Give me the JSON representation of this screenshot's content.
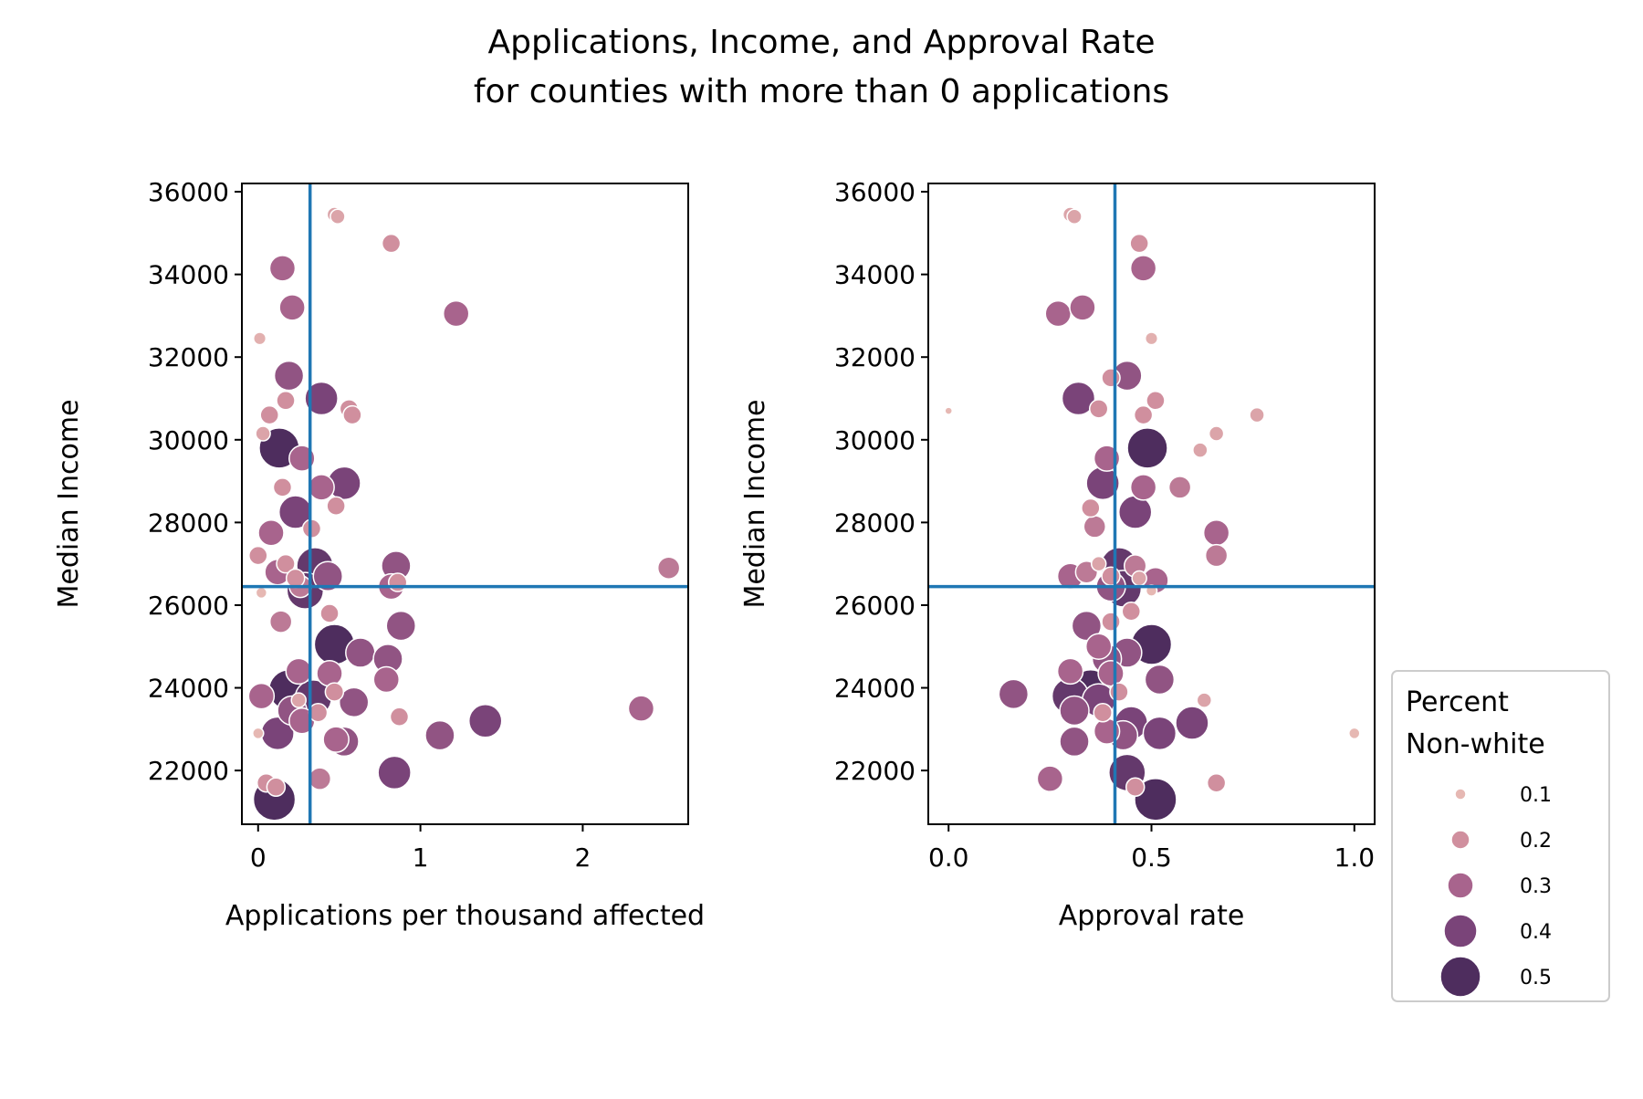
{
  "title_line1": "Applications, Income, and Approval Rate",
  "title_line2": "for counties with more than 0 applications",
  "legend": {
    "title_line1": "Percent",
    "title_line2": "Non-white",
    "levels": [
      0.1,
      0.2,
      0.3,
      0.4,
      0.5
    ],
    "labels": [
      "0.1",
      "0.2",
      "0.3",
      "0.4",
      "0.5"
    ],
    "colors": [
      "#e6b8b3",
      "#d08f9e",
      "#a8648d",
      "#7a4479",
      "#4e2d5e"
    ]
  },
  "reference_lines": {
    "apps_per_thousand": 0.32,
    "approval_rate": 0.41,
    "median_income": 26450,
    "color": "#1f77b4"
  },
  "chart_data": [
    {
      "type": "scatter",
      "xlabel": "Applications per thousand affected",
      "ylabel": "Median Income",
      "xlim": [
        -0.1,
        2.65
      ],
      "ylim": [
        20700,
        36200
      ],
      "xticks": [
        0,
        1,
        2
      ],
      "xtick_labels": [
        "0",
        "1",
        "2"
      ],
      "yticks": [
        22000,
        24000,
        26000,
        28000,
        30000,
        32000,
        34000,
        36000
      ],
      "ytick_labels": [
        "22000",
        "24000",
        "26000",
        "28000",
        "30000",
        "32000",
        "34000",
        "36000"
      ],
      "points": [
        {
          "x": 0.47,
          "y": 35450,
          "nw": 0.15
        },
        {
          "x": 0.49,
          "y": 35400,
          "nw": 0.15
        },
        {
          "x": 0.82,
          "y": 34750,
          "nw": 0.2
        },
        {
          "x": 0.15,
          "y": 34150,
          "nw": 0.3
        },
        {
          "x": 0.21,
          "y": 33200,
          "nw": 0.3
        },
        {
          "x": 1.22,
          "y": 33050,
          "nw": 0.3
        },
        {
          "x": 0.01,
          "y": 32450,
          "nw": 0.12
        },
        {
          "x": 0.19,
          "y": 31550,
          "nw": 0.35
        },
        {
          "x": 0.39,
          "y": 31000,
          "nw": 0.4
        },
        {
          "x": 0.17,
          "y": 30950,
          "nw": 0.2
        },
        {
          "x": 0.56,
          "y": 30750,
          "nw": 0.2
        },
        {
          "x": 0.07,
          "y": 30600,
          "nw": 0.2
        },
        {
          "x": 0.58,
          "y": 30600,
          "nw": 0.2
        },
        {
          "x": 0.03,
          "y": 30150,
          "nw": 0.15
        },
        {
          "x": 0.13,
          "y": 29800,
          "nw": 0.5
        },
        {
          "x": 0.27,
          "y": 29550,
          "nw": 0.3
        },
        {
          "x": 0.15,
          "y": 28850,
          "nw": 0.2
        },
        {
          "x": 0.39,
          "y": 28850,
          "nw": 0.3
        },
        {
          "x": 0.53,
          "y": 28950,
          "nw": 0.4
        },
        {
          "x": 0.48,
          "y": 28400,
          "nw": 0.2
        },
        {
          "x": 0.23,
          "y": 28250,
          "nw": 0.4
        },
        {
          "x": 0.33,
          "y": 27850,
          "nw": 0.2
        },
        {
          "x": 0.08,
          "y": 27750,
          "nw": 0.3
        },
        {
          "x": 0.0,
          "y": 27200,
          "nw": 0.2
        },
        {
          "x": 0.17,
          "y": 27000,
          "nw": 0.2
        },
        {
          "x": 0.35,
          "y": 26950,
          "nw": 0.45
        },
        {
          "x": 0.85,
          "y": 26950,
          "nw": 0.35
        },
        {
          "x": 0.12,
          "y": 26800,
          "nw": 0.3
        },
        {
          "x": 0.23,
          "y": 26650,
          "nw": 0.2
        },
        {
          "x": 0.43,
          "y": 26700,
          "nw": 0.35
        },
        {
          "x": 0.86,
          "y": 26550,
          "nw": 0.2
        },
        {
          "x": 0.26,
          "y": 26450,
          "nw": 0.25
        },
        {
          "x": 0.29,
          "y": 26350,
          "nw": 0.45
        },
        {
          "x": 0.82,
          "y": 26450,
          "nw": 0.3
        },
        {
          "x": 0.02,
          "y": 26300,
          "nw": 0.1
        },
        {
          "x": 0.44,
          "y": 25800,
          "nw": 0.2
        },
        {
          "x": 0.14,
          "y": 25600,
          "nw": 0.25
        },
        {
          "x": 0.88,
          "y": 25500,
          "nw": 0.35
        },
        {
          "x": 0.47,
          "y": 25050,
          "nw": 0.5
        },
        {
          "x": 0.63,
          "y": 24850,
          "nw": 0.35
        },
        {
          "x": 0.8,
          "y": 24700,
          "nw": 0.35
        },
        {
          "x": 0.25,
          "y": 24400,
          "nw": 0.3
        },
        {
          "x": 0.44,
          "y": 24350,
          "nw": 0.3
        },
        {
          "x": 0.79,
          "y": 24200,
          "nw": 0.3
        },
        {
          "x": 0.19,
          "y": 23950,
          "nw": 0.5
        },
        {
          "x": 0.47,
          "y": 23900,
          "nw": 0.2
        },
        {
          "x": 0.02,
          "y": 23800,
          "nw": 0.3
        },
        {
          "x": 0.25,
          "y": 23700,
          "nw": 0.15
        },
        {
          "x": 0.34,
          "y": 23750,
          "nw": 0.45
        },
        {
          "x": 0.59,
          "y": 23650,
          "nw": 0.35
        },
        {
          "x": 0.21,
          "y": 23450,
          "nw": 0.35
        },
        {
          "x": 0.37,
          "y": 23400,
          "nw": 0.2
        },
        {
          "x": 2.36,
          "y": 23500,
          "nw": 0.3
        },
        {
          "x": 0.27,
          "y": 23200,
          "nw": 0.3
        },
        {
          "x": 0.87,
          "y": 23300,
          "nw": 0.2
        },
        {
          "x": 1.4,
          "y": 23200,
          "nw": 0.4
        },
        {
          "x": 0.0,
          "y": 22900,
          "nw": 0.1
        },
        {
          "x": 0.12,
          "y": 22900,
          "nw": 0.4
        },
        {
          "x": 0.48,
          "y": 22750,
          "nw": 0.3
        },
        {
          "x": 0.53,
          "y": 22700,
          "nw": 0.35
        },
        {
          "x": 1.12,
          "y": 22850,
          "nw": 0.35
        },
        {
          "x": 0.84,
          "y": 21950,
          "nw": 0.4
        },
        {
          "x": 0.38,
          "y": 21800,
          "nw": 0.25
        },
        {
          "x": 0.05,
          "y": 21700,
          "nw": 0.2
        },
        {
          "x": 0.11,
          "y": 21600,
          "nw": 0.2
        },
        {
          "x": 0.1,
          "y": 21300,
          "nw": 0.55
        },
        {
          "x": 2.53,
          "y": 26900,
          "nw": 0.25
        }
      ]
    },
    {
      "type": "scatter",
      "xlabel": "Approval rate",
      "ylabel": "Median Income",
      "xlim": [
        -0.05,
        1.05
      ],
      "ylim": [
        20700,
        36200
      ],
      "xticks": [
        0.0,
        0.5,
        1.0
      ],
      "xtick_labels": [
        "0.0",
        "0.5",
        "1.0"
      ],
      "yticks": [
        22000,
        24000,
        26000,
        28000,
        30000,
        32000,
        34000,
        36000
      ],
      "ytick_labels": [
        "22000",
        "24000",
        "26000",
        "28000",
        "30000",
        "32000",
        "34000",
        "36000"
      ],
      "points": [
        {
          "x": 0.3,
          "y": 35450,
          "nw": 0.15
        },
        {
          "x": 0.31,
          "y": 35400,
          "nw": 0.15
        },
        {
          "x": 0.47,
          "y": 34750,
          "nw": 0.2
        },
        {
          "x": 0.48,
          "y": 34150,
          "nw": 0.3
        },
        {
          "x": 0.27,
          "y": 33050,
          "nw": 0.3
        },
        {
          "x": 0.33,
          "y": 33200,
          "nw": 0.3
        },
        {
          "x": 0.5,
          "y": 32450,
          "nw": 0.12
        },
        {
          "x": 0.4,
          "y": 31500,
          "nw": 0.2
        },
        {
          "x": 0.44,
          "y": 31550,
          "nw": 0.35
        },
        {
          "x": 0.32,
          "y": 31000,
          "nw": 0.4
        },
        {
          "x": 0.51,
          "y": 30950,
          "nw": 0.2
        },
        {
          "x": 0.0,
          "y": 30700,
          "nw": 0.05
        },
        {
          "x": 0.37,
          "y": 30750,
          "nw": 0.2
        },
        {
          "x": 0.48,
          "y": 30600,
          "nw": 0.2
        },
        {
          "x": 0.76,
          "y": 30600,
          "nw": 0.15
        },
        {
          "x": 0.66,
          "y": 30150,
          "nw": 0.15
        },
        {
          "x": 0.62,
          "y": 29750,
          "nw": 0.15
        },
        {
          "x": 0.49,
          "y": 29800,
          "nw": 0.5
        },
        {
          "x": 0.39,
          "y": 29550,
          "nw": 0.3
        },
        {
          "x": 0.38,
          "y": 28950,
          "nw": 0.4
        },
        {
          "x": 0.48,
          "y": 28850,
          "nw": 0.3
        },
        {
          "x": 0.57,
          "y": 28850,
          "nw": 0.25
        },
        {
          "x": 0.35,
          "y": 28350,
          "nw": 0.2
        },
        {
          "x": 0.46,
          "y": 28250,
          "nw": 0.4
        },
        {
          "x": 0.36,
          "y": 27900,
          "nw": 0.25
        },
        {
          "x": 0.66,
          "y": 27750,
          "nw": 0.3
        },
        {
          "x": 0.66,
          "y": 27200,
          "nw": 0.25
        },
        {
          "x": 0.37,
          "y": 27000,
          "nw": 0.15
        },
        {
          "x": 0.42,
          "y": 26950,
          "nw": 0.45
        },
        {
          "x": 0.46,
          "y": 26950,
          "nw": 0.25
        },
        {
          "x": 0.3,
          "y": 26700,
          "nw": 0.3
        },
        {
          "x": 0.34,
          "y": 26800,
          "nw": 0.25
        },
        {
          "x": 0.4,
          "y": 26700,
          "nw": 0.2
        },
        {
          "x": 0.47,
          "y": 26650,
          "nw": 0.15
        },
        {
          "x": 0.51,
          "y": 26600,
          "nw": 0.3
        },
        {
          "x": 0.4,
          "y": 26450,
          "nw": 0.35
        },
        {
          "x": 0.43,
          "y": 26400,
          "nw": 0.45
        },
        {
          "x": 0.5,
          "y": 26350,
          "nw": 0.1
        },
        {
          "x": 0.45,
          "y": 25850,
          "nw": 0.2
        },
        {
          "x": 0.4,
          "y": 25600,
          "nw": 0.2
        },
        {
          "x": 0.34,
          "y": 25500,
          "nw": 0.35
        },
        {
          "x": 0.37,
          "y": 25000,
          "nw": 0.3
        },
        {
          "x": 0.5,
          "y": 25050,
          "nw": 0.5
        },
        {
          "x": 0.44,
          "y": 24850,
          "nw": 0.35
        },
        {
          "x": 0.39,
          "y": 24700,
          "nw": 0.35
        },
        {
          "x": 0.3,
          "y": 24400,
          "nw": 0.3
        },
        {
          "x": 0.4,
          "y": 24350,
          "nw": 0.3
        },
        {
          "x": 0.52,
          "y": 24200,
          "nw": 0.35
        },
        {
          "x": 0.35,
          "y": 23950,
          "nw": 0.5
        },
        {
          "x": 0.42,
          "y": 23900,
          "nw": 0.2
        },
        {
          "x": 0.16,
          "y": 23850,
          "nw": 0.35
        },
        {
          "x": 0.3,
          "y": 23800,
          "nw": 0.45
        },
        {
          "x": 0.37,
          "y": 23700,
          "nw": 0.4
        },
        {
          "x": 0.63,
          "y": 23700,
          "nw": 0.15
        },
        {
          "x": 0.31,
          "y": 23450,
          "nw": 0.35
        },
        {
          "x": 0.38,
          "y": 23400,
          "nw": 0.2
        },
        {
          "x": 0.45,
          "y": 23150,
          "nw": 0.4
        },
        {
          "x": 0.6,
          "y": 23150,
          "nw": 0.4
        },
        {
          "x": 0.39,
          "y": 22950,
          "nw": 0.3
        },
        {
          "x": 0.52,
          "y": 22900,
          "nw": 0.4
        },
        {
          "x": 1.0,
          "y": 22900,
          "nw": 0.1
        },
        {
          "x": 0.31,
          "y": 22700,
          "nw": 0.35
        },
        {
          "x": 0.43,
          "y": 22850,
          "nw": 0.35
        },
        {
          "x": 0.44,
          "y": 21950,
          "nw": 0.45
        },
        {
          "x": 0.25,
          "y": 21800,
          "nw": 0.3
        },
        {
          "x": 0.66,
          "y": 21700,
          "nw": 0.2
        },
        {
          "x": 0.46,
          "y": 21600,
          "nw": 0.2
        },
        {
          "x": 0.51,
          "y": 21300,
          "nw": 0.55
        }
      ]
    }
  ]
}
